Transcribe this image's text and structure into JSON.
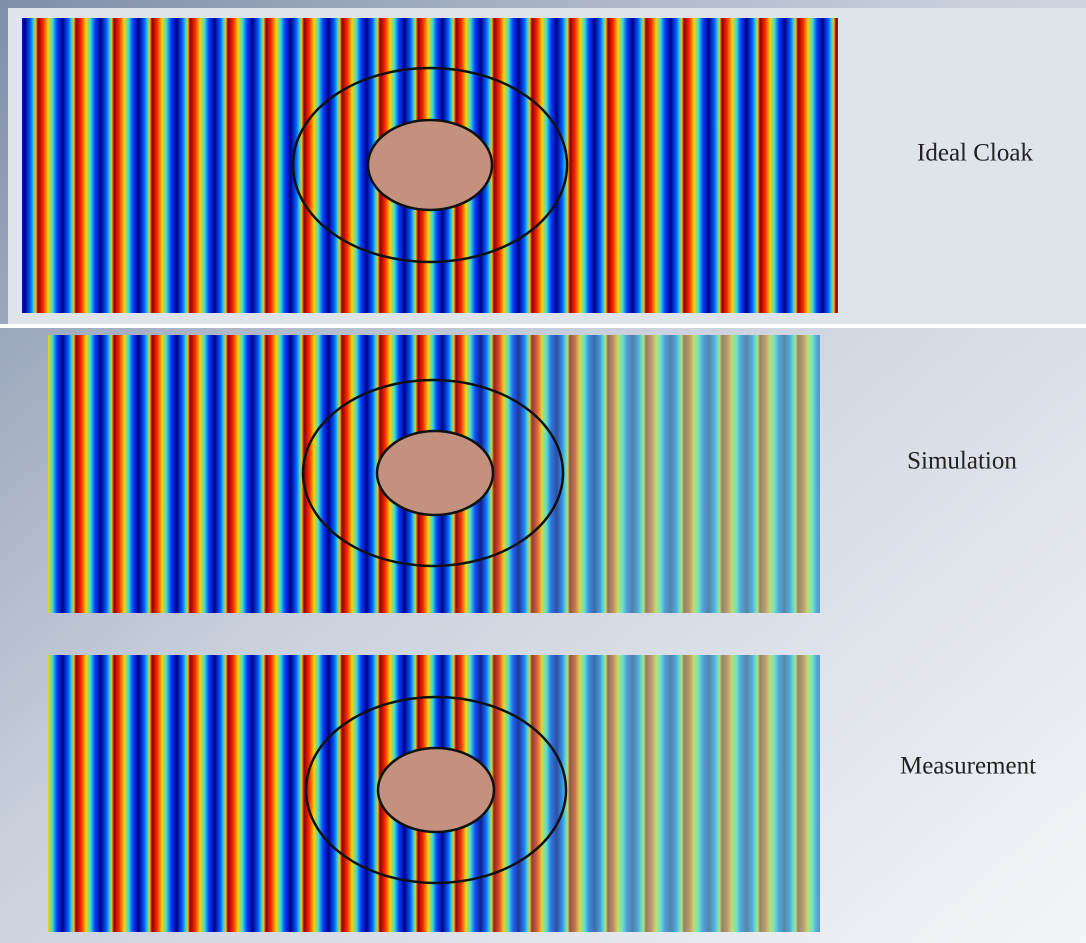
{
  "panels": [
    {
      "label": "Ideal Cloak"
    },
    {
      "label": "Simulation"
    },
    {
      "label": "Measurement"
    }
  ]
}
